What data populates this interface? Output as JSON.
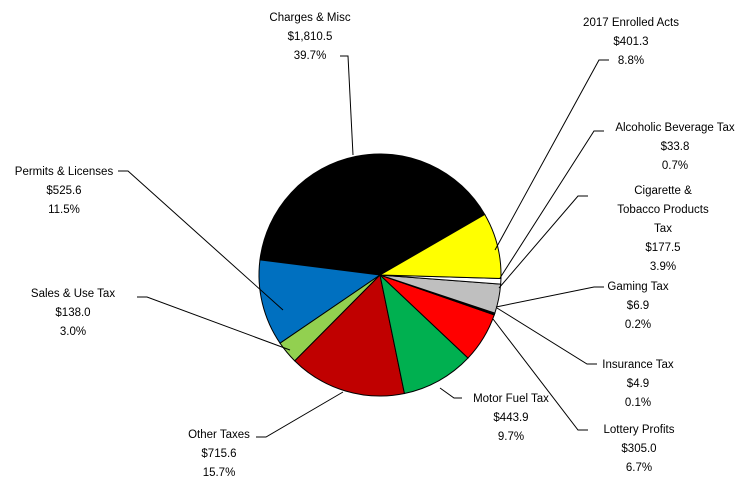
{
  "chart_data": {
    "type": "pie",
    "start_angle_deg": 30,
    "direction": "counterclockwise",
    "slices": [
      {
        "label_lines": [
          "Charges & Misc"
        ],
        "value": "$1,810.5",
        "percent": "39.7%",
        "amount": 1810.5,
        "pct": 39.7,
        "color": "#000000"
      },
      {
        "label_lines": [
          "Permits & Licenses"
        ],
        "value": "$525.6",
        "percent": "11.5%",
        "amount": 525.6,
        "pct": 11.5,
        "color": "#0070C0"
      },
      {
        "label_lines": [
          "Sales & Use Tax"
        ],
        "value": "$138.0",
        "percent": "3.0%",
        "amount": 138.0,
        "pct": 3.0,
        "color": "#92D050"
      },
      {
        "label_lines": [
          "Other Taxes"
        ],
        "value": "$715.6",
        "percent": "15.7%",
        "amount": 715.6,
        "pct": 15.7,
        "color": "#C00000"
      },
      {
        "label_lines": [
          "Motor Fuel Tax"
        ],
        "value": "$443.9",
        "percent": "9.7%",
        "amount": 443.9,
        "pct": 9.7,
        "color": "#00B050"
      },
      {
        "label_lines": [
          "Lottery Profits"
        ],
        "value": "$305.0",
        "percent": "6.7%",
        "amount": 305.0,
        "pct": 6.7,
        "color": "#FF0000"
      },
      {
        "label_lines": [
          "Insurance Tax"
        ],
        "value": "$4.9",
        "percent": "0.1%",
        "amount": 4.9,
        "pct": 0.1,
        "color": "#FFFFFF"
      },
      {
        "label_lines": [
          "Gaming Tax"
        ],
        "value": "$6.9",
        "percent": "0.2%",
        "amount": 6.9,
        "pct": 0.2,
        "color": "#7F7F7F"
      },
      {
        "label_lines": [
          "Cigarette &",
          "Tobacco Products",
          "Tax"
        ],
        "value": "$177.5",
        "percent": "3.9%",
        "amount": 177.5,
        "pct": 3.9,
        "color": "#BFBFBF"
      },
      {
        "label_lines": [
          "Alcoholic Beverage Tax"
        ],
        "value": "$33.8",
        "percent": "0.7%",
        "amount": 33.8,
        "pct": 0.7,
        "color": "#FFFFFF"
      },
      {
        "label_lines": [
          "2017 Enrolled Acts"
        ],
        "value": "$401.3",
        "percent": "8.8%",
        "amount": 401.3,
        "pct": 8.8,
        "color": "#FFFF00"
      }
    ]
  }
}
